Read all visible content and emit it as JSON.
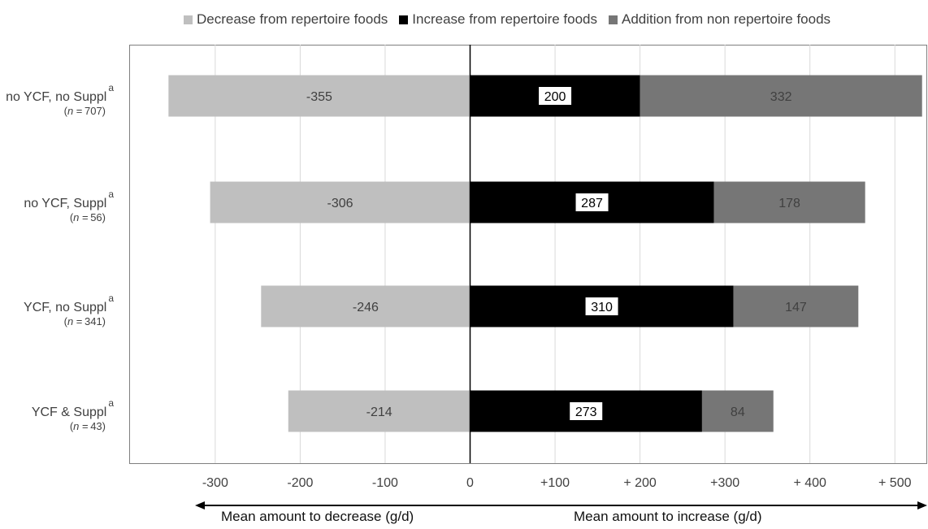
{
  "chart_data": {
    "type": "bar",
    "orientation": "horizontal",
    "stacked": true,
    "categories": [
      "no YCF, no Suppl",
      "no YCF, Suppl",
      "YCF, no Suppl",
      "YCF & Suppl"
    ],
    "category_superscript": "a",
    "sample_sizes": [
      "707",
      "56",
      "341",
      "43"
    ],
    "n_label": "n",
    "n_prefix": "(",
    "n_infix": " =",
    "n_suffix": ")",
    "series": [
      {
        "name": "Decrease from repertoire foods",
        "values": [
          -355,
          -306,
          -246,
          -214
        ],
        "color": "#bfbfbf",
        "label_color": "#404040"
      },
      {
        "name": "Increase from repertoire foods",
        "values": [
          200,
          287,
          310,
          273
        ],
        "color": "#000000",
        "label_color": "#000000"
      },
      {
        "name": "Addition from non repertoire foods",
        "values": [
          332,
          178,
          147,
          84
        ],
        "color": "#767676",
        "label_color": "#404040"
      }
    ],
    "data_labels": [
      [
        "-355",
        "200",
        "332"
      ],
      [
        "-306",
        "287",
        "178"
      ],
      [
        "-246",
        "310",
        "147"
      ],
      [
        "-214",
        "273",
        "84"
      ]
    ],
    "xlim": [
      -400,
      540
    ],
    "xticks": [
      -300,
      -200,
      -100,
      0,
      100,
      200,
      300,
      400,
      500
    ],
    "xtick_labels": [
      "-300",
      "-200",
      "-100",
      "0",
      "+100",
      "+ 200",
      "+300",
      "+ 400",
      "+ 500"
    ],
    "grid": true,
    "legend": "top",
    "xlabel_left": "Mean amount to decrease (g/d)",
    "xlabel_right": "Mean amount to increase (g/d)"
  }
}
